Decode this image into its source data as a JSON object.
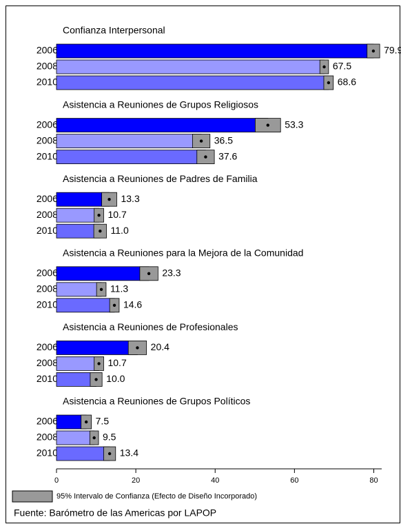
{
  "chart_data": {
    "type": "bar",
    "orientation": "horizontal",
    "xlim": [
      0,
      82
    ],
    "xticks": [
      0,
      20,
      40,
      60,
      80
    ],
    "colors": [
      "#0000ff",
      "#9999ff",
      "#6a6aff"
    ],
    "ci_color": "#999999",
    "legend_label": "95% Intervalo de Confianza (Efecto de Diseño Incorporado)",
    "source": "Fuente: Barómetro de las Americas por LAPOP",
    "panels": [
      {
        "title": "Confianza Interpersonal",
        "categories": [
          "2006",
          "2008",
          "2010"
        ],
        "values": [
          79.9,
          67.5,
          68.6
        ],
        "value_labels": [
          "79.9",
          "67.5",
          "68.6"
        ],
        "errors": [
          1.6,
          1.1,
          1.2
        ]
      },
      {
        "title": "Asistencia a Reuniones de Grupos Religiosos",
        "categories": [
          "2006",
          "2008",
          "2010"
        ],
        "values": [
          53.3,
          36.5,
          37.6
        ],
        "value_labels": [
          "53.3",
          "36.5",
          "37.6"
        ],
        "errors": [
          3.2,
          2.2,
          2.2
        ]
      },
      {
        "title": "Asistencia a Reuniones de Padres de Familia",
        "categories": [
          "2006",
          "2008",
          "2010"
        ],
        "values": [
          13.3,
          10.7,
          11.0
        ],
        "value_labels": [
          "13.3",
          "10.7",
          "11.0"
        ],
        "errors": [
          1.9,
          1.2,
          1.6
        ]
      },
      {
        "title": "Asistencia a Reuniones para la Mejora de la Comunidad",
        "categories": [
          "2006",
          "2008",
          "2010"
        ],
        "values": [
          23.3,
          11.3,
          14.6
        ],
        "value_labels": [
          "23.3",
          "11.3",
          "14.6"
        ],
        "errors": [
          2.3,
          1.2,
          1.2
        ]
      },
      {
        "title": "Asistencia a Reuniones de Profesionales",
        "categories": [
          "2006",
          "2008",
          "2010"
        ],
        "values": [
          20.4,
          10.7,
          10.0
        ],
        "value_labels": [
          "20.4",
          "10.7",
          "10.0"
        ],
        "errors": [
          2.3,
          1.2,
          1.5
        ]
      },
      {
        "title": "Asistencia a Reuniones de Grupos Políticos",
        "categories": [
          "2006",
          "2008",
          "2010"
        ],
        "values": [
          7.5,
          9.5,
          13.4
        ],
        "value_labels": [
          "7.5",
          "9.5",
          "13.4"
        ],
        "errors": [
          1.3,
          1.1,
          1.5
        ]
      }
    ]
  }
}
